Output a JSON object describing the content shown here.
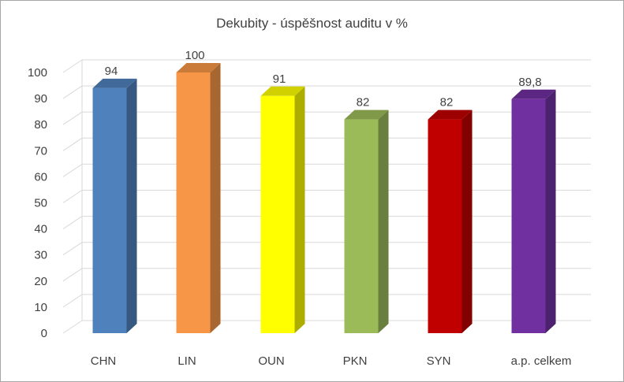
{
  "chart_data": {
    "type": "bar",
    "title": "Dekubity - úspěšnost auditu v %",
    "categories": [
      "CHN",
      "LIN",
      "OUN",
      "PKN",
      "SYN",
      "a.p. celkem"
    ],
    "values": [
      94,
      100,
      91,
      82,
      82,
      89.8
    ],
    "data_labels": [
      "94",
      "100",
      "91",
      "82",
      "82",
      "89,8"
    ],
    "colors": [
      "#4f81bd",
      "#f79646",
      "#ffff00",
      "#9bbb59",
      "#c00000",
      "#7030a0"
    ],
    "ylim": [
      0,
      100
    ],
    "yticks": [
      0,
      10,
      20,
      30,
      40,
      50,
      60,
      70,
      80,
      90,
      100
    ],
    "grid": true,
    "style": "3d-columns",
    "xlabel": "",
    "ylabel": ""
  }
}
